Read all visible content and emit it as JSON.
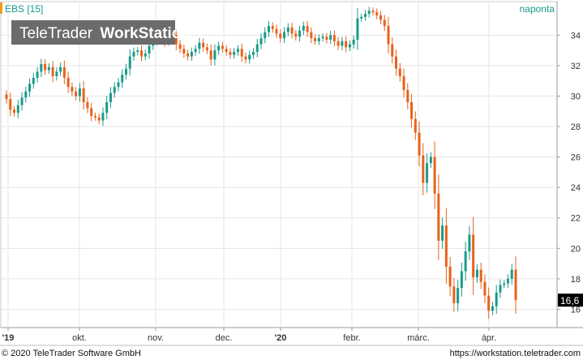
{
  "header": {
    "symbol_label": "EBS [15]",
    "period_label": "naponta",
    "logo_text_light": "TeleTrader",
    "logo_text_bold": "WorkStation"
  },
  "footer": {
    "copyright": "© 2020 TeleTrader Software GmbH",
    "url": "https://workstation.teletrader.com"
  },
  "colors": {
    "up": "#1a9a8a",
    "down": "#e8621a",
    "accent": "#1a9a8a",
    "logo_bg": "#6b6b6b",
    "price_tag_bg": "#000000"
  },
  "chart_data": {
    "type": "candlestick",
    "x_tick_labels": [
      "'19",
      "okt.",
      "nov.",
      "dec.",
      "'20",
      "febr.",
      "márc.",
      "ápr."
    ],
    "y_tick_labels": [
      "16",
      "18",
      "20",
      "22",
      "24",
      "26",
      "28",
      "30",
      "32",
      "34"
    ],
    "ylim": [
      14.8,
      36.2
    ],
    "last_price_label": "16,6",
    "last_price": 16.6,
    "grid": true,
    "closes": [
      29.8,
      29.1,
      28.9,
      29.4,
      29.9,
      30.3,
      30.8,
      31.2,
      31.6,
      32.1,
      31.7,
      31.9,
      31.3,
      31.6,
      31.9,
      31.2,
      30.6,
      30.3,
      30.0,
      30.5,
      29.6,
      29.2,
      28.7,
      28.6,
      28.4,
      28.9,
      29.6,
      30.2,
      30.6,
      30.9,
      31.4,
      31.8,
      32.6,
      32.9,
      33.0,
      32.6,
      32.8,
      33.3,
      33.6,
      33.9,
      34.1,
      33.6,
      33.9,
      34.0,
      33.4,
      33.1,
      32.8,
      32.6,
      32.9,
      33.1,
      33.5,
      33.2,
      33.0,
      32.4,
      33.0,
      33.3,
      33.1,
      32.9,
      32.7,
      32.9,
      33.1,
      32.6,
      32.4,
      32.7,
      32.9,
      33.4,
      33.8,
      34.2,
      34.6,
      34.4,
      34.1,
      33.8,
      34.2,
      34.5,
      34.1,
      33.9,
      34.3,
      34.6,
      34.2,
      33.8,
      33.6,
      33.8,
      33.9,
      33.7,
      34.0,
      33.6,
      33.3,
      33.6,
      33.2,
      33.4,
      33.7,
      35.1,
      35.2,
      35.4,
      35.6,
      35.5,
      35.3,
      35.0,
      34.6,
      33.4,
      32.6,
      31.8,
      31.3,
      30.4,
      29.6,
      28.5,
      27.6,
      26.1,
      24.3,
      25.6,
      26.0,
      23.6,
      20.5,
      21.5,
      18.8,
      17.5,
      16.4,
      17.4,
      18.5,
      19.8,
      20.9,
      18.1,
      18.6,
      17.8,
      16.9,
      15.9,
      16.2,
      17.1,
      17.6,
      17.7,
      18.0,
      18.6,
      16.6
    ]
  }
}
